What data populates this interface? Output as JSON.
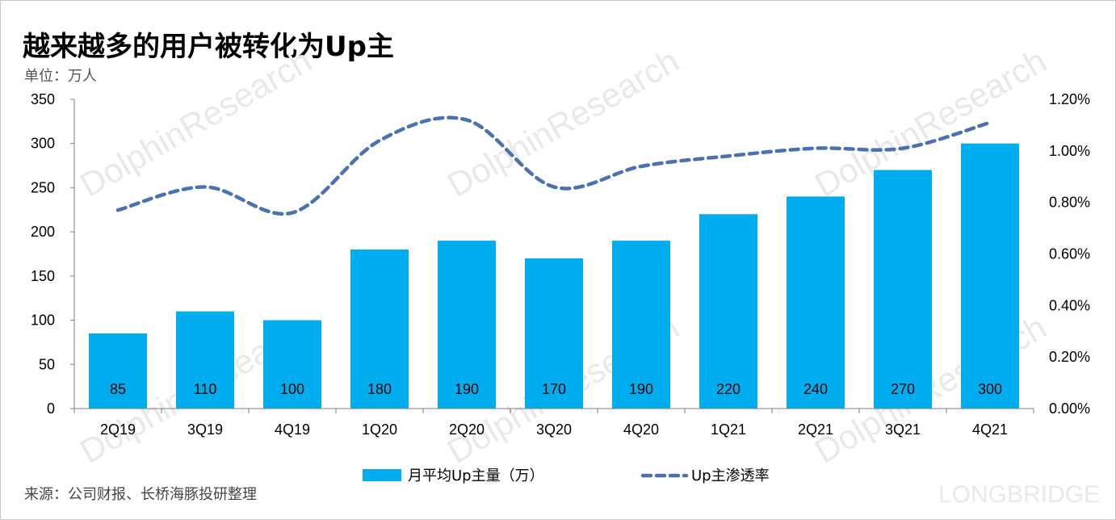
{
  "header": {
    "title": "越来越多的用户被转化为Up主",
    "unit": "单位：万人"
  },
  "footer": {
    "source": "来源：公司财报、长桥海豚投研整理",
    "brand_watermark": "LONGBRIDGE"
  },
  "colors": {
    "bar": "#00adee",
    "line": "#4a72b0",
    "axis": "#7f7f7f"
  },
  "chart_data": {
    "type": "bar",
    "categories": [
      "2Q19",
      "3Q19",
      "4Q19",
      "1Q20",
      "2Q20",
      "3Q20",
      "4Q20",
      "1Q21",
      "2Q21",
      "3Q21",
      "4Q21"
    ],
    "series": [
      {
        "name": "月平均Up主量（万）",
        "type": "bar",
        "axis": "left",
        "values": [
          85,
          110,
          100,
          180,
          190,
          170,
          190,
          220,
          240,
          270,
          300
        ],
        "data_labels": [
          "85",
          "110",
          "100",
          "180",
          "190",
          "170",
          "190",
          "220",
          "240",
          "270",
          "300"
        ]
      },
      {
        "name": "Up主渗透率",
        "type": "line",
        "style": "dashed",
        "axis": "right",
        "values": [
          0.77,
          0.86,
          0.76,
          1.04,
          1.12,
          0.86,
          0.94,
          0.98,
          1.01,
          1.01,
          1.11
        ]
      }
    ],
    "y_left": {
      "min": 0,
      "max": 350,
      "ticks": [
        "0",
        "50",
        "100",
        "150",
        "200",
        "250",
        "300",
        "350"
      ]
    },
    "y_right": {
      "min": 0,
      "max": 1.2,
      "ticks": [
        "0.00%",
        "0.20%",
        "0.40%",
        "0.60%",
        "0.80%",
        "1.00%",
        "1.20%"
      ]
    },
    "legend_position": "bottom",
    "grid": false
  }
}
